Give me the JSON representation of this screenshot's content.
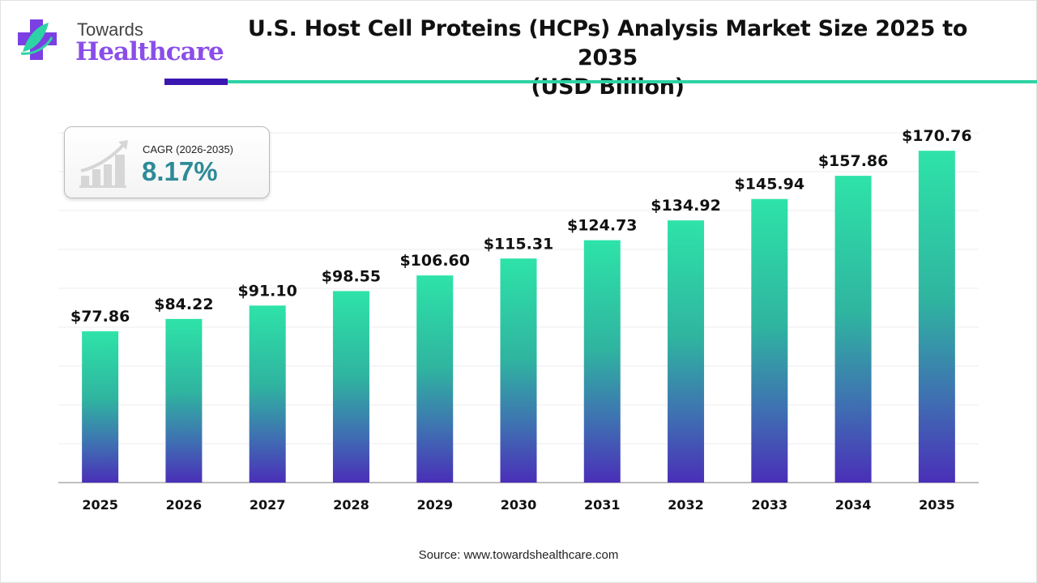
{
  "brand": {
    "line1": "Towards",
    "line2": "Healthcare"
  },
  "title_line1": "U.S. Host Cell Proteins (HCPs) Analysis Market Size 2025 to 2035",
  "title_line2": "(USD Billion)",
  "cagr": {
    "label": "CAGR (2026-2035)",
    "value": "8.17%"
  },
  "source": "Source: www.towardshealthcare.com",
  "colors": {
    "bar_top": "#2ee3a8",
    "bar_bottom": "#4a2fb8",
    "accent_dark": "#3a17b0",
    "accent_teal": "#2ed3a5",
    "cagr_text": "#2e8b97"
  },
  "chart_data": {
    "type": "bar",
    "title": "U.S. Host Cell Proteins (HCPs) Analysis Market Size 2025 to 2035 (USD Billion)",
    "categories": [
      "2025",
      "2026",
      "2027",
      "2028",
      "2029",
      "2030",
      "2031",
      "2032",
      "2033",
      "2034",
      "2035"
    ],
    "values": [
      77.86,
      84.22,
      91.1,
      98.55,
      106.6,
      115.31,
      124.73,
      134.92,
      145.94,
      157.86,
      170.76
    ],
    "labels": [
      "$77.86",
      "$84.22",
      "$91.10",
      "$98.55",
      "$106.60",
      "$115.31",
      "$124.73",
      "$134.92",
      "$145.94",
      "$157.86",
      "$170.76"
    ],
    "xlabel": "",
    "ylabel": "",
    "ylim": [
      0,
      180
    ],
    "grid": true,
    "y_axis_labels_shown": false
  }
}
